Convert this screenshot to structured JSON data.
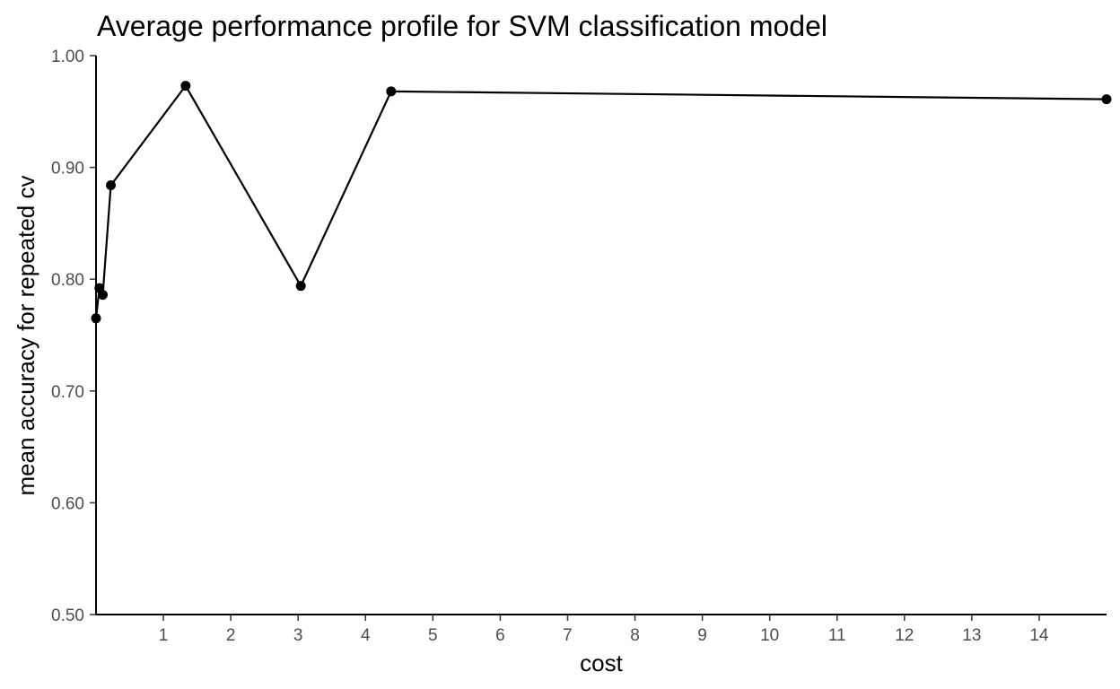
{
  "chart_data": {
    "type": "line",
    "title": "Average performance profile for SVM classification model",
    "xlabel": "cost",
    "ylabel": "mean accuracy for repeated cv",
    "xlim": [
      0,
      15
    ],
    "ylim": [
      0.5,
      1.0
    ],
    "x_ticks": [
      1,
      2,
      3,
      4,
      5,
      6,
      7,
      8,
      9,
      10,
      11,
      12,
      13,
      14
    ],
    "x_tick_labels": [
      "1",
      "2",
      "3",
      "4",
      "5",
      "6",
      "7",
      "8",
      "9",
      "10",
      "11",
      "12",
      "13",
      "14"
    ],
    "y_ticks": [
      0.5,
      0.6,
      0.7,
      0.8,
      0.9,
      1.0
    ],
    "y_tick_labels": [
      "0.50",
      "0.60",
      "0.70",
      "0.80",
      "0.90",
      "1.00"
    ],
    "grid": false,
    "series": [
      {
        "x": [
          0.0,
          0.05,
          0.1,
          0.22,
          1.33,
          3.04,
          4.38,
          15.0
        ],
        "y": [
          0.765,
          0.792,
          0.786,
          0.884,
          0.973,
          0.794,
          0.968,
          0.961
        ]
      }
    ],
    "colors": {
      "line": "#000000",
      "point": "#000000",
      "axis": "#000000",
      "tick_label": "#4d4d4d"
    }
  }
}
